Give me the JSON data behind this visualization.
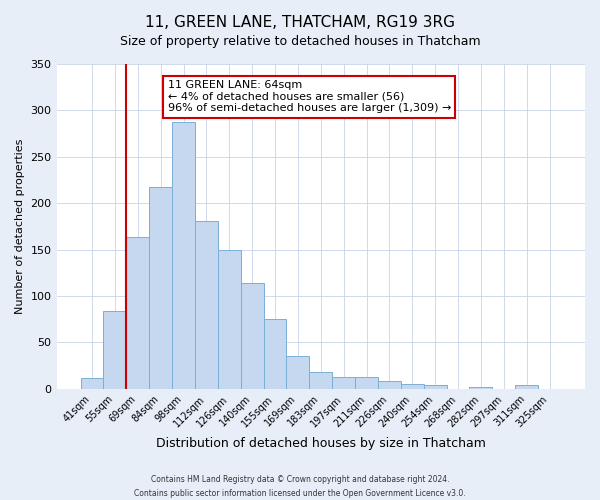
{
  "title": "11, GREEN LANE, THATCHAM, RG19 3RG",
  "subtitle": "Size of property relative to detached houses in Thatcham",
  "xlabel": "Distribution of detached houses by size in Thatcham",
  "ylabel": "Number of detached properties",
  "bar_labels": [
    "41sqm",
    "55sqm",
    "69sqm",
    "84sqm",
    "98sqm",
    "112sqm",
    "126sqm",
    "140sqm",
    "155sqm",
    "169sqm",
    "183sqm",
    "197sqm",
    "211sqm",
    "226sqm",
    "240sqm",
    "254sqm",
    "268sqm",
    "282sqm",
    "297sqm",
    "311sqm",
    "325sqm"
  ],
  "bar_heights": [
    12,
    84,
    164,
    218,
    287,
    181,
    150,
    114,
    75,
    35,
    18,
    13,
    13,
    9,
    5,
    4,
    0,
    2,
    0,
    4,
    0
  ],
  "bar_color": "#c5d8f0",
  "bar_edge_color": "#7aafd4",
  "vline_color": "#cc0000",
  "vline_x": 1.5,
  "annotation_title": "11 GREEN LANE: 64sqm",
  "annotation_line1": "← 4% of detached houses are smaller (56)",
  "annotation_line2": "96% of semi-detached houses are larger (1,309) →",
  "annotation_box_color": "#cc0000",
  "ylim": [
    0,
    350
  ],
  "yticks": [
    0,
    50,
    100,
    150,
    200,
    250,
    300,
    350
  ],
  "footer1": "Contains HM Land Registry data © Crown copyright and database right 2024.",
  "footer2": "Contains public sector information licensed under the Open Government Licence v3.0.",
  "background_color": "#e8eef8",
  "plot_bg_color": "#ffffff",
  "grid_color": "#c8d4e8",
  "title_fontsize": 11,
  "subtitle_fontsize": 9,
  "ylabel_fontsize": 8,
  "xlabel_fontsize": 9,
  "tick_fontsize": 7,
  "annot_fontsize": 8,
  "footer_fontsize": 5.5
}
